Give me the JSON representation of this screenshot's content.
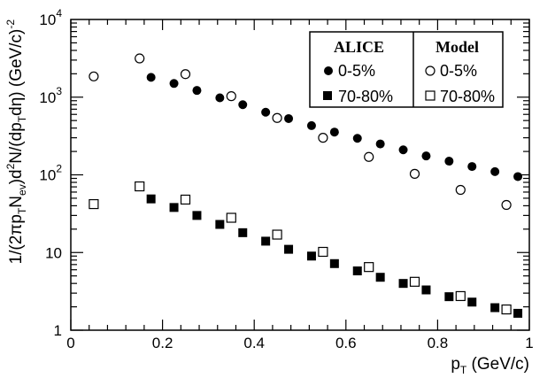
{
  "chart_data": {
    "type": "scatter",
    "xlabel": "p_T (GeV/c)",
    "ylabel": "1/(2πp_T N_ev)d²N/(dp_T dη) (GeV/c)⁻²",
    "x_label_parts": {
      "p": "p",
      "sub": "T",
      "unit": " (GeV/c)"
    },
    "y_label_parts": {
      "a": "1/(2πp",
      "s1": "T",
      "b": "N",
      "s2": "ev",
      "c": ")d",
      "p2": "2",
      "d": "N/(dp",
      "s3": "T",
      "e": "dη) (GeV/c)",
      "pm2": "-2"
    },
    "xlim": [
      0,
      1
    ],
    "ylim": [
      1,
      10000
    ],
    "yscale": "log",
    "x_ticks": [
      {
        "value": 0,
        "label": "0"
      },
      {
        "value": 0.2,
        "label": "0.2"
      },
      {
        "value": 0.4,
        "label": "0.4"
      },
      {
        "value": 0.6,
        "label": "0.6"
      },
      {
        "value": 0.8,
        "label": "0.8"
      },
      {
        "value": 1,
        "label": "1"
      }
    ],
    "y_ticks": [
      {
        "value": 1,
        "base": "1",
        "exp": ""
      },
      {
        "value": 10,
        "base": "10",
        "exp": ""
      },
      {
        "value": 100,
        "base": "10",
        "exp": "2"
      },
      {
        "value": 1000,
        "base": "10",
        "exp": "3"
      },
      {
        "value": 10000,
        "base": "10",
        "exp": "4"
      }
    ],
    "legend": {
      "position": "top-right",
      "col1_title": "ALICE",
      "col2_title": "Model",
      "row1_label": "0-5%",
      "row2_label": "70-80%"
    },
    "series": [
      {
        "name": "ALICE 0-5%",
        "marker": "filled-circle",
        "color": "#000000",
        "x": [
          0.175,
          0.225,
          0.275,
          0.325,
          0.375,
          0.425,
          0.475,
          0.525,
          0.575,
          0.625,
          0.675,
          0.725,
          0.775,
          0.825,
          0.875,
          0.925,
          0.975
        ],
        "y": [
          1800,
          1500,
          1220,
          980,
          800,
          640,
          530,
          430,
          355,
          295,
          250,
          210,
          175,
          150,
          128,
          110,
          95
        ]
      },
      {
        "name": "ALICE 70-80%",
        "marker": "filled-square",
        "color": "#000000",
        "x": [
          0.175,
          0.225,
          0.275,
          0.325,
          0.375,
          0.425,
          0.475,
          0.525,
          0.575,
          0.625,
          0.675,
          0.725,
          0.775,
          0.825,
          0.875,
          0.925,
          0.975
        ],
        "y": [
          49,
          38,
          30,
          23,
          18,
          14,
          11,
          9,
          7.2,
          5.8,
          4.8,
          4.0,
          3.3,
          2.7,
          2.3,
          1.95,
          1.65
        ]
      },
      {
        "name": "Model 0-5%",
        "marker": "open-circle",
        "color": "#000000",
        "x": [
          0.05,
          0.15,
          0.25,
          0.35,
          0.45,
          0.55,
          0.65,
          0.75,
          0.85,
          0.95
        ],
        "y": [
          1850,
          3150,
          1980,
          1030,
          540,
          300,
          170,
          103,
          64,
          41
        ]
      },
      {
        "name": "Model 70-80%",
        "marker": "open-square",
        "color": "#000000",
        "x": [
          0.05,
          0.15,
          0.25,
          0.35,
          0.45,
          0.55,
          0.65,
          0.75,
          0.85,
          0.95
        ],
        "y": [
          42,
          71,
          48,
          28,
          17,
          10.2,
          6.5,
          4.2,
          2.75,
          1.85
        ]
      }
    ]
  }
}
